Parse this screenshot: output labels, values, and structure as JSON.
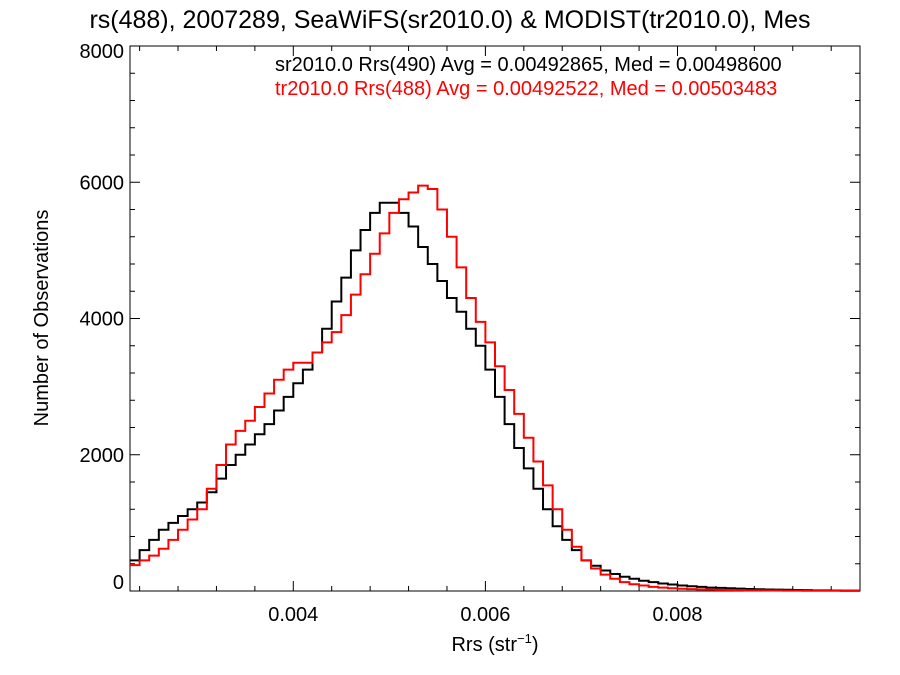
{
  "chart_data": {
    "type": "line",
    "title": "rs(488), 2007289, SeaWiFS(sr2010.0) & MODIST(tr2010.0), Mes",
    "xlabel": "Rrs (str",
    "xlabel_sup": "−1",
    "xlabel_close": ")",
    "ylabel": "Number of Observations",
    "xlim": [
      0.0023,
      0.0099
    ],
    "ylim": [
      0,
      8000
    ],
    "x_ticks": [
      {
        "value": 0.004,
        "label": "0.004"
      },
      {
        "value": 0.006,
        "label": "0.006"
      },
      {
        "value": 0.008,
        "label": "0.008"
      }
    ],
    "y_ticks": [
      {
        "value": 0,
        "label": "0"
      },
      {
        "value": 2000,
        "label": "2000"
      },
      {
        "value": 4000,
        "label": "4000"
      },
      {
        "value": 6000,
        "label": "6000"
      },
      {
        "value": 8000,
        "label": "8000"
      }
    ],
    "grid": false,
    "legend_position": "top-right",
    "series": [
      {
        "legend": "sr2010.0 Rrs(490) Avg = 0.00492865, Med = 0.00498600",
        "color": "#000000",
        "x": [
          0.0023,
          0.0024,
          0.0025,
          0.0026,
          0.0027,
          0.0028,
          0.0029,
          0.003,
          0.0031,
          0.0032,
          0.0033,
          0.0034,
          0.0035,
          0.0036,
          0.0037,
          0.0038,
          0.0039,
          0.004,
          0.0041,
          0.0042,
          0.0043,
          0.0044,
          0.0045,
          0.0046,
          0.0047,
          0.0048,
          0.0049,
          0.005,
          0.0051,
          0.0052,
          0.0053,
          0.0054,
          0.0055,
          0.0056,
          0.0057,
          0.0058,
          0.0059,
          0.006,
          0.0061,
          0.0062,
          0.0063,
          0.0064,
          0.0065,
          0.0066,
          0.0067,
          0.0068,
          0.0069,
          0.007,
          0.0071,
          0.0072,
          0.0073,
          0.0074,
          0.0075,
          0.0076,
          0.0077,
          0.0078,
          0.0079,
          0.008,
          0.0081,
          0.0082,
          0.0083,
          0.0084,
          0.0085,
          0.0086,
          0.0087,
          0.0088,
          0.0089,
          0.009,
          0.0091,
          0.0092,
          0.0093,
          0.0094,
          0.0095,
          0.0096,
          0.0097,
          0.0098
        ],
        "y": [
          450,
          600,
          750,
          900,
          1000,
          1100,
          1200,
          1300,
          1450,
          1650,
          1850,
          2000,
          2150,
          2300,
          2450,
          2650,
          2850,
          3050,
          3250,
          3500,
          3850,
          4250,
          4600,
          5000,
          5300,
          5550,
          5700,
          5700,
          5550,
          5350,
          5050,
          4800,
          4550,
          4300,
          4100,
          3850,
          3600,
          3250,
          2850,
          2450,
          2100,
          1800,
          1500,
          1200,
          950,
          750,
          600,
          450,
          370,
          300,
          250,
          210,
          180,
          150,
          130,
          110,
          95,
          80,
          70,
          60,
          50,
          45,
          40,
          35,
          30,
          25,
          22,
          20,
          18,
          15,
          12,
          10,
          10,
          8,
          6,
          5
        ]
      },
      {
        "legend": "tr2010.0 Rrs(488) Avg = 0.00492522, Med = 0.00503483",
        "color": "#ff0000",
        "x": [
          0.0023,
          0.0024,
          0.0025,
          0.0026,
          0.0027,
          0.0028,
          0.0029,
          0.003,
          0.0031,
          0.0032,
          0.0033,
          0.0034,
          0.0035,
          0.0036,
          0.0037,
          0.0038,
          0.0039,
          0.004,
          0.0041,
          0.0042,
          0.0043,
          0.0044,
          0.0045,
          0.0046,
          0.0047,
          0.0048,
          0.0049,
          0.005,
          0.0051,
          0.0052,
          0.0053,
          0.0054,
          0.0055,
          0.0056,
          0.0057,
          0.0058,
          0.0059,
          0.006,
          0.0061,
          0.0062,
          0.0063,
          0.0064,
          0.0065,
          0.0066,
          0.0067,
          0.0068,
          0.0069,
          0.007,
          0.0071,
          0.0072,
          0.0073,
          0.0074,
          0.0075,
          0.0076,
          0.0077,
          0.0078,
          0.0079,
          0.008,
          0.0081,
          0.0082,
          0.0083,
          0.0084,
          0.0085,
          0.0086,
          0.0087,
          0.0088,
          0.0089,
          0.009,
          0.0091,
          0.0092,
          0.0093,
          0.0094,
          0.0095,
          0.0096,
          0.0097,
          0.0098
        ],
        "y": [
          380,
          450,
          520,
          620,
          750,
          900,
          1050,
          1200,
          1500,
          1850,
          2150,
          2350,
          2500,
          2700,
          2900,
          3100,
          3250,
          3350,
          3350,
          3500,
          3650,
          3800,
          4050,
          4350,
          4650,
          4950,
          5250,
          5550,
          5750,
          5850,
          5950,
          5900,
          5600,
          5200,
          4750,
          4300,
          3950,
          3650,
          3300,
          2950,
          2600,
          2250,
          1900,
          1550,
          1200,
          900,
          650,
          450,
          330,
          240,
          180,
          130,
          100,
          80,
          60,
          50,
          40,
          33,
          28,
          24,
          20,
          17,
          15,
          12,
          10,
          9,
          8,
          7,
          6,
          5,
          4,
          4,
          3,
          3,
          2,
          2
        ]
      }
    ]
  }
}
